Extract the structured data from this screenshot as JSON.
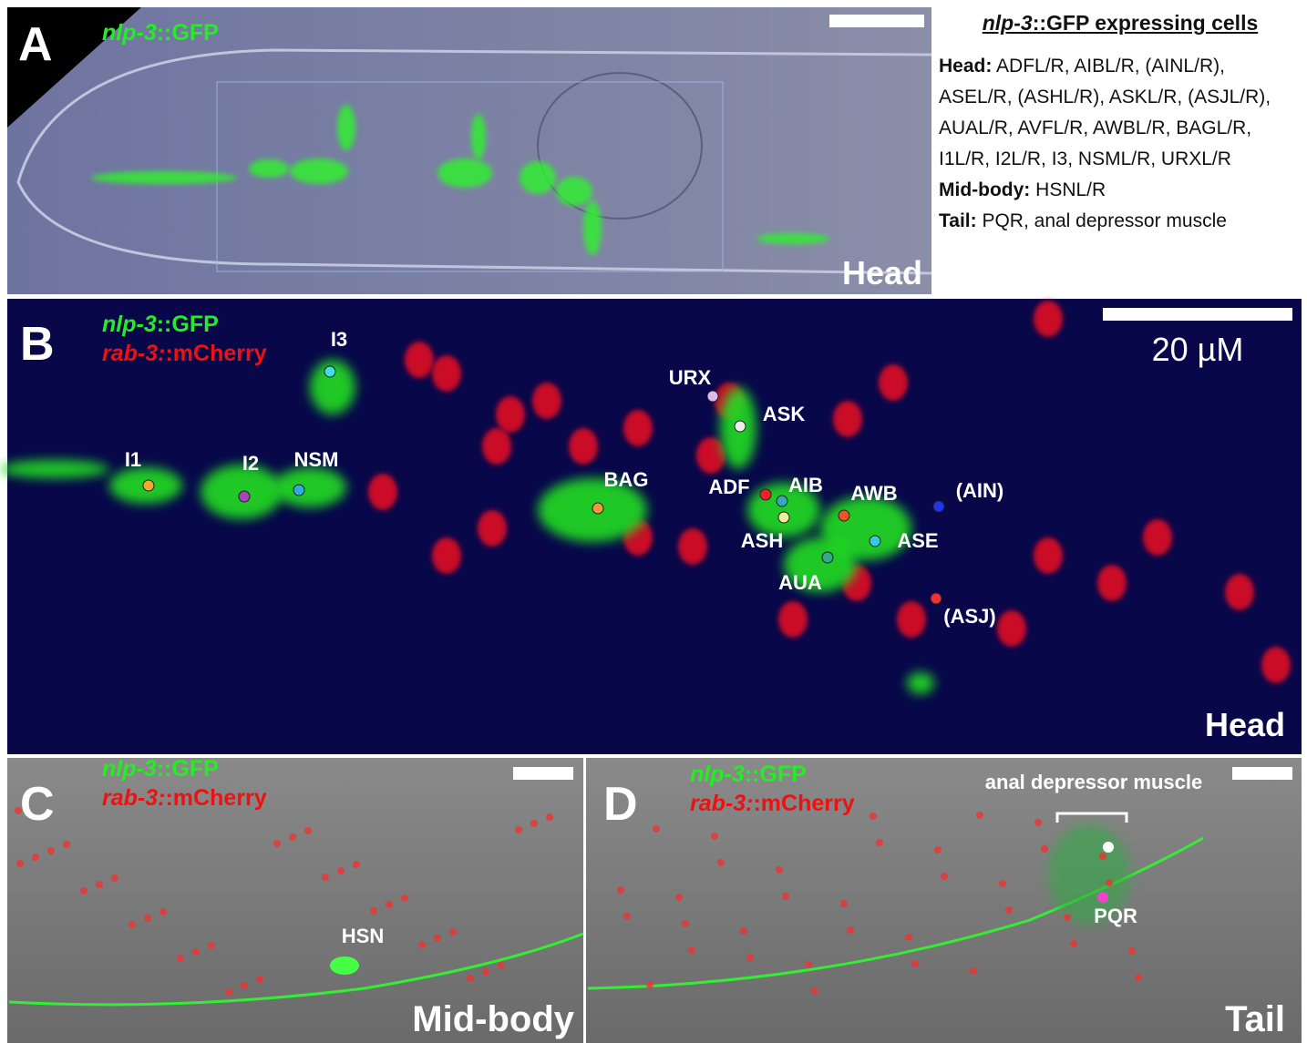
{
  "panels": {
    "A": {
      "letter": "A",
      "gene": "nlp-3",
      "marker": "::GFP",
      "region": "Head"
    },
    "B": {
      "letter": "B",
      "genes": [
        {
          "gene": "nlp-3",
          "marker": "::GFP"
        },
        {
          "gene": "rab-3:",
          "marker": ":mCherry"
        }
      ],
      "scale_bar": "20 µM",
      "region": "Head",
      "cells": [
        "I3",
        "URX",
        "ASK",
        "I1",
        "I2",
        "NSM",
        "BAG",
        "ADF",
        "AIB",
        "AWB",
        "(AIN)",
        "ASH",
        "ASE",
        "AUA",
        "(ASJ)"
      ]
    },
    "C": {
      "letter": "C",
      "genes": [
        {
          "gene": "nlp-3",
          "marker": "::GFP"
        },
        {
          "gene": "rab-3:",
          "marker": ":mCherry"
        }
      ],
      "cells": [
        "HSN"
      ],
      "region": "Mid-body"
    },
    "D": {
      "letter": "D",
      "genes": [
        {
          "gene": "nlp-3",
          "marker": "::GFP"
        },
        {
          "gene": "rab-3:",
          "marker": ":mCherry"
        }
      ],
      "annotation": "anal depressor muscle",
      "cells": [
        "PQR"
      ],
      "region": "Tail"
    }
  },
  "cell_list": {
    "title_gene": "nlp-3",
    "title_rest": "::GFP expressing cells",
    "groups": [
      {
        "label": "Head:",
        "cells": "ADFL/R, AIBL/R, (AINL/R), ASEL/R, (ASHL/R), ASKL/R, (ASJL/R), AUAL/R, AVFL/R, AWBL/R, BAGL/R, I1L/R, I2L/R, I3, NSML/R, URXL/R"
      },
      {
        "label": "Mid-body:",
        "cells": "HSNL/R"
      },
      {
        "label": "Tail:",
        "cells": "PQR, anal depressor muscle"
      }
    ]
  }
}
